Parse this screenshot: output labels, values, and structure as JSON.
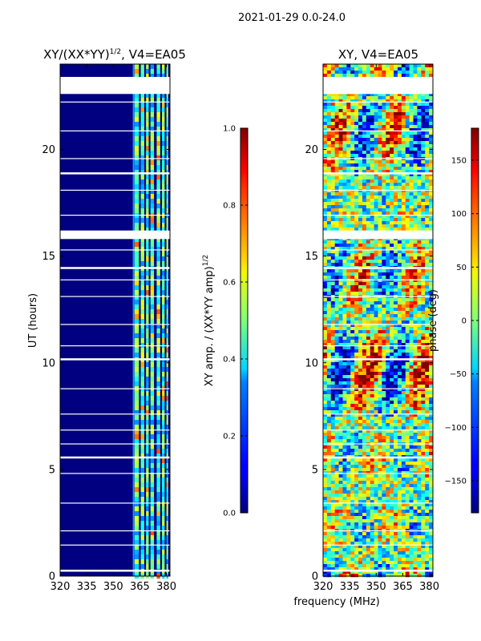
{
  "header": {
    "suptitle": "2021-01-29 0.0-24.0"
  },
  "chart_data": [
    {
      "type": "heatmap",
      "title": "XY/(XX*YY)",
      "title_sup": "1/2",
      "title_suffix": ", V4=EA05",
      "xlabel": "",
      "ylabel": "UT (hours)",
      "xlim": [
        320,
        382
      ],
      "ylim": [
        0,
        24
      ],
      "xticks": [
        320,
        335,
        350,
        365,
        380
      ],
      "yticks": [
        0,
        5,
        10,
        15,
        20
      ],
      "colorbar": {
        "label": "XY amp. / (XX*YY amp)",
        "label_sup": "1/2",
        "range": [
          0.0,
          1.0
        ],
        "ticks": [
          0.0,
          0.2,
          0.4,
          0.6,
          0.8,
          1.0
        ],
        "tick_labels": [
          "0.0",
          "0.2",
          "0.4",
          "0.6",
          "0.8",
          "1.0"
        ]
      }
    },
    {
      "type": "heatmap",
      "title": "XY, V4=EA05",
      "xlabel": "frequency (MHz)",
      "ylabel": "",
      "xlim": [
        320,
        382
      ],
      "ylim": [
        0,
        24
      ],
      "xticks": [
        320,
        335,
        350,
        365,
        380
      ],
      "yticks": [
        0,
        5,
        10,
        15,
        20
      ],
      "colorbar": {
        "label": "phase (deg)",
        "range": [
          -180,
          180
        ],
        "ticks": [
          -150,
          -100,
          -50,
          0,
          50,
          100,
          150
        ],
        "tick_labels": [
          "−150",
          "−100",
          "−50",
          "0",
          "50",
          "100",
          "150"
        ]
      }
    }
  ]
}
